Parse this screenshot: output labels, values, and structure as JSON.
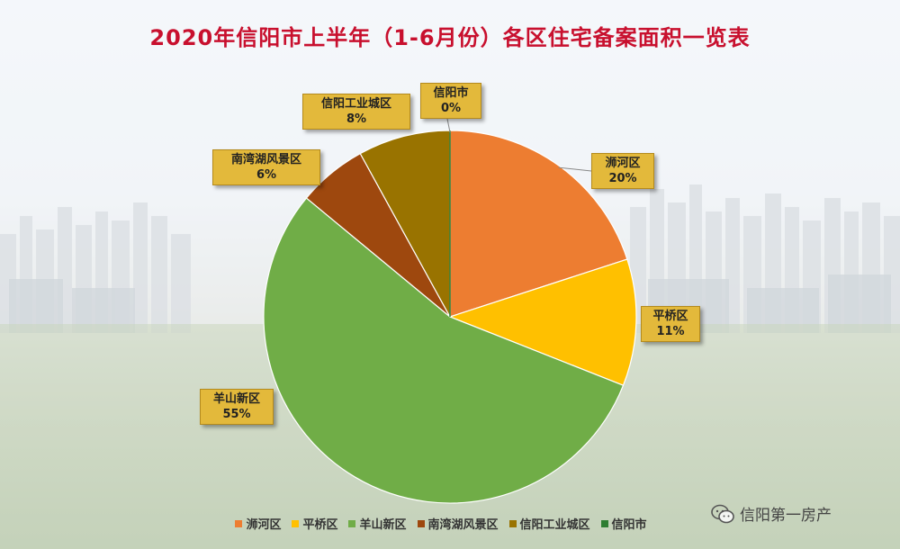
{
  "chart_data": {
    "type": "pie",
    "title": "2020年信阳市上半年（1-6月份）各区住宅备案面积一览表",
    "slices": [
      {
        "label": "浉河区",
        "value": 20,
        "display": "20%",
        "color": "#ed7d31"
      },
      {
        "label": "平桥区",
        "value": 11,
        "display": "11%",
        "color": "#ffc000"
      },
      {
        "label": "羊山新区",
        "value": 55,
        "display": "55%",
        "color": "#70ad47"
      },
      {
        "label": "南湾湖风景区",
        "value": 6,
        "display": "6%",
        "color": "#9e480e"
      },
      {
        "label": "信阳工业城区",
        "value": 8,
        "display": "8%",
        "color": "#997300"
      },
      {
        "label": "信阳市",
        "value": 0,
        "display": "0%",
        "color": "#2e7d32"
      }
    ],
    "legend_position": "bottom"
  },
  "watermark": {
    "text": "信阳第一房产",
    "icon": "wechat-icon"
  }
}
